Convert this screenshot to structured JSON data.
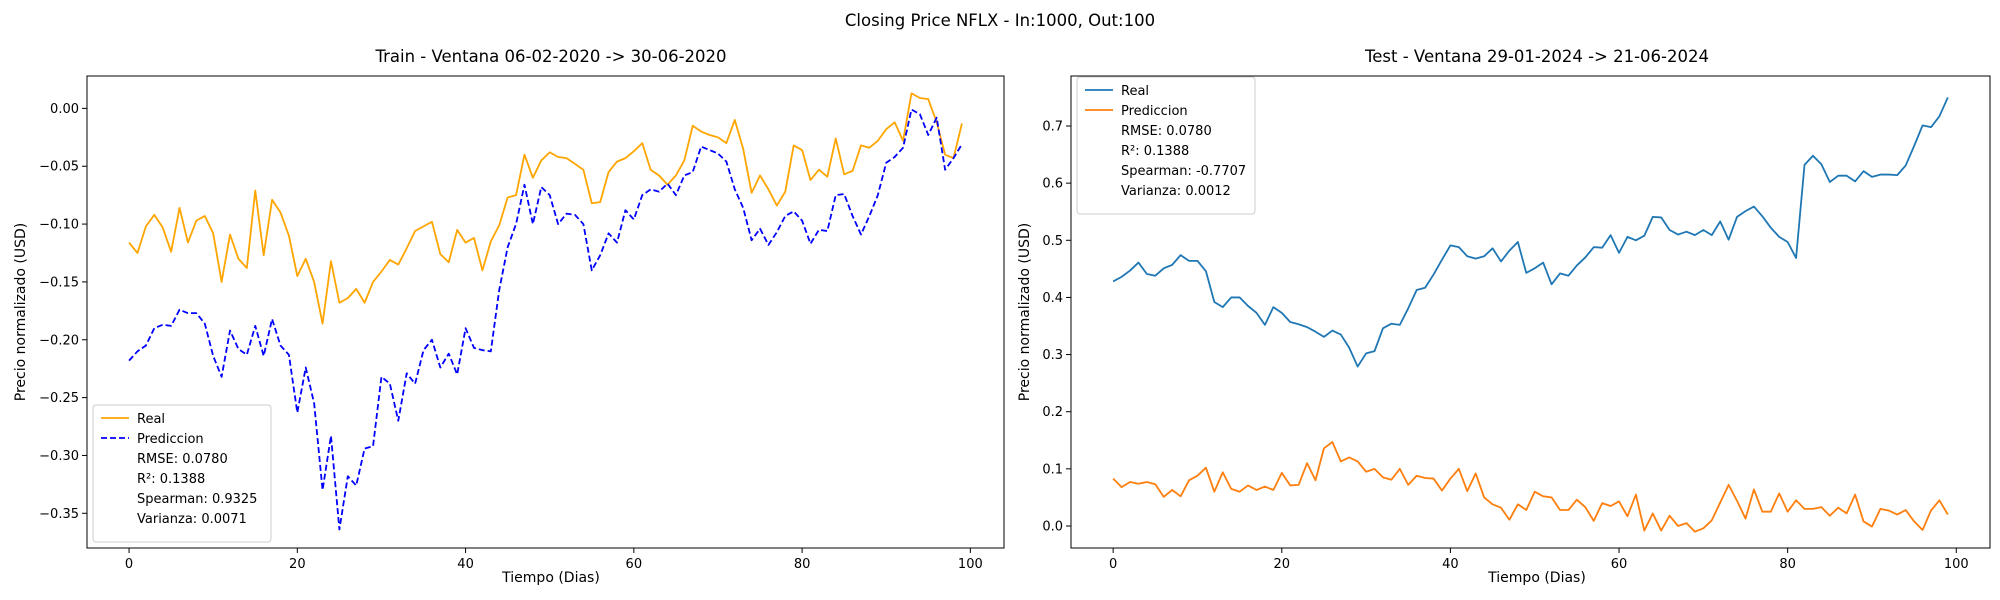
{
  "suptitle": "Closing Price NFLX - In:1000, Out:100",
  "chart_data": [
    {
      "type": "line",
      "title": "Train - Ventana 06-02-2020 -> 30-06-2020",
      "xlabel": "Tiempo (Dias)",
      "ylabel": "Precio normalizado (USD)",
      "xlim": [
        -5,
        104
      ],
      "ylim": [
        -0.38,
        0.028
      ],
      "xticks": [
        0,
        20,
        40,
        60,
        80,
        100
      ],
      "yticks": [
        -0.35,
        -0.3,
        -0.25,
        -0.2,
        -0.15,
        -0.1,
        -0.05,
        0.0
      ],
      "ytick_labels": [
        "−0.35",
        "−0.30",
        "−0.25",
        "−0.20",
        "−0.15",
        "−0.10",
        "−0.05",
        "0.00"
      ],
      "legend_position": "lower-left",
      "legend_entries": [
        "Real",
        "Prediccion"
      ],
      "legend_stats": [
        "RMSE: 0.0780",
        "R²: 0.1388",
        "Spearman: 0.9325",
        "Varianza: 0.0071"
      ],
      "series": [
        {
          "name": "Real",
          "color": "#ffa500",
          "dash": "solid",
          "values": [
            -0.116,
            -0.125,
            -0.102,
            -0.092,
            -0.103,
            -0.124,
            -0.086,
            -0.116,
            -0.097,
            -0.093,
            -0.108,
            -0.15,
            -0.109,
            -0.13,
            -0.138,
            -0.071,
            -0.127,
            -0.079,
            -0.09,
            -0.11,
            -0.145,
            -0.13,
            -0.15,
            -0.186,
            -0.132,
            -0.168,
            -0.164,
            -0.156,
            -0.168,
            -0.15,
            -0.141,
            -0.131,
            -0.135,
            -0.121,
            -0.106,
            -0.102,
            -0.098,
            -0.126,
            -0.133,
            -0.105,
            -0.116,
            -0.112,
            -0.14,
            -0.115,
            -0.101,
            -0.077,
            -0.075,
            -0.04,
            -0.06,
            -0.045,
            -0.038,
            -0.042,
            -0.043,
            -0.048,
            -0.053,
            -0.082,
            -0.081,
            -0.055,
            -0.046,
            -0.043,
            -0.037,
            -0.03,
            -0.053,
            -0.058,
            -0.066,
            -0.058,
            -0.045,
            -0.015,
            -0.02,
            -0.023,
            -0.025,
            -0.03,
            -0.01,
            -0.035,
            -0.073,
            -0.058,
            -0.07,
            -0.084,
            -0.072,
            -0.032,
            -0.036,
            -0.062,
            -0.053,
            -0.059,
            -0.026,
            -0.057,
            -0.054,
            -0.032,
            -0.034,
            -0.028,
            -0.018,
            -0.012,
            -0.028,
            0.013,
            0.009,
            0.008,
            -0.012,
            -0.04,
            -0.043,
            -0.013
          ]
        },
        {
          "name": "Prediccion",
          "color": "#0000ff",
          "dash": "dashed",
          "values": [
            -0.218,
            -0.21,
            -0.205,
            -0.19,
            -0.187,
            -0.188,
            -0.174,
            -0.177,
            -0.177,
            -0.186,
            -0.214,
            -0.232,
            -0.192,
            -0.208,
            -0.213,
            -0.188,
            -0.214,
            -0.182,
            -0.205,
            -0.213,
            -0.263,
            -0.224,
            -0.255,
            -0.33,
            -0.283,
            -0.364,
            -0.318,
            -0.326,
            -0.294,
            -0.292,
            -0.232,
            -0.238,
            -0.27,
            -0.229,
            -0.238,
            -0.209,
            -0.2,
            -0.224,
            -0.212,
            -0.23,
            -0.19,
            -0.207,
            -0.209,
            -0.21,
            -0.157,
            -0.12,
            -0.1,
            -0.066,
            -0.1,
            -0.068,
            -0.075,
            -0.1,
            -0.091,
            -0.092,
            -0.1,
            -0.14,
            -0.127,
            -0.108,
            -0.116,
            -0.088,
            -0.096,
            -0.075,
            -0.07,
            -0.072,
            -0.065,
            -0.075,
            -0.058,
            -0.055,
            -0.033,
            -0.036,
            -0.039,
            -0.046,
            -0.07,
            -0.086,
            -0.114,
            -0.104,
            -0.118,
            -0.107,
            -0.093,
            -0.089,
            -0.097,
            -0.117,
            -0.105,
            -0.106,
            -0.075,
            -0.074,
            -0.093,
            -0.109,
            -0.093,
            -0.075,
            -0.047,
            -0.042,
            -0.034,
            -0.001,
            -0.005,
            -0.023,
            -0.008,
            -0.053,
            -0.043,
            -0.031
          ]
        }
      ]
    },
    {
      "type": "line",
      "title": "Test - Ventana 29-01-2024 -> 21-06-2024",
      "xlabel": "Tiempo (Dias)",
      "ylabel": "Precio normalizado (USD)",
      "xlim": [
        -5,
        104
      ],
      "ylim": [
        -0.0385,
        0.7875
      ],
      "xticks": [
        0,
        20,
        40,
        60,
        80,
        100
      ],
      "yticks": [
        0.0,
        0.1,
        0.2,
        0.3,
        0.4,
        0.5,
        0.6,
        0.7
      ],
      "ytick_labels": [
        "0.0",
        "0.1",
        "0.2",
        "0.3",
        "0.4",
        "0.5",
        "0.6",
        "0.7"
      ],
      "legend_position": "upper-left",
      "legend_entries": [
        "Real",
        "Prediccion"
      ],
      "legend_stats": [
        "RMSE: 0.0780",
        "R²: 0.1388",
        "Spearman: -0.7707",
        "Varianza: 0.0012"
      ],
      "series": [
        {
          "name": "Real",
          "color": "#1f77b4",
          "dash": "solid",
          "values": [
            0.428,
            0.436,
            0.447,
            0.461,
            0.441,
            0.438,
            0.451,
            0.457,
            0.474,
            0.464,
            0.464,
            0.446,
            0.392,
            0.383,
            0.4,
            0.4,
            0.385,
            0.373,
            0.352,
            0.383,
            0.373,
            0.357,
            0.353,
            0.348,
            0.34,
            0.331,
            0.342,
            0.335,
            0.312,
            0.279,
            0.302,
            0.306,
            0.346,
            0.354,
            0.352,
            0.381,
            0.413,
            0.417,
            0.44,
            0.466,
            0.491,
            0.488,
            0.472,
            0.468,
            0.472,
            0.486,
            0.463,
            0.482,
            0.497,
            0.443,
            0.451,
            0.461,
            0.423,
            0.442,
            0.438,
            0.456,
            0.47,
            0.488,
            0.487,
            0.509,
            0.478,
            0.506,
            0.5,
            0.508,
            0.541,
            0.54,
            0.518,
            0.51,
            0.515,
            0.509,
            0.518,
            0.509,
            0.533,
            0.501,
            0.541,
            0.551,
            0.559,
            0.542,
            0.522,
            0.506,
            0.497,
            0.469,
            0.632,
            0.648,
            0.633,
            0.602,
            0.613,
            0.613,
            0.603,
            0.621,
            0.611,
            0.615,
            0.615,
            0.614,
            0.631,
            0.665,
            0.701,
            0.698,
            0.717,
            0.75
          ]
        },
        {
          "name": "Prediccion",
          "color": "#ff7f0e",
          "dash": "solid",
          "values": [
            0.083,
            0.068,
            0.077,
            0.074,
            0.077,
            0.073,
            0.051,
            0.063,
            0.052,
            0.08,
            0.088,
            0.102,
            0.06,
            0.094,
            0.065,
            0.06,
            0.071,
            0.063,
            0.069,
            0.063,
            0.093,
            0.071,
            0.072,
            0.11,
            0.08,
            0.136,
            0.147,
            0.113,
            0.12,
            0.113,
            0.095,
            0.1,
            0.085,
            0.081,
            0.1,
            0.072,
            0.088,
            0.084,
            0.083,
            0.062,
            0.083,
            0.1,
            0.061,
            0.092,
            0.05,
            0.038,
            0.032,
            0.011,
            0.038,
            0.028,
            0.06,
            0.052,
            0.05,
            0.028,
            0.028,
            0.046,
            0.033,
            0.009,
            0.04,
            0.035,
            0.043,
            0.017,
            0.055,
            -0.008,
            0.022,
            -0.008,
            0.018,
            0.0,
            0.005,
            -0.01,
            -0.004,
            0.01,
            0.041,
            0.072,
            0.044,
            0.013,
            0.064,
            0.025,
            0.025,
            0.057,
            0.025,
            0.045,
            0.03,
            0.03,
            0.033,
            0.018,
            0.032,
            0.022,
            0.055,
            0.008,
            -0.001,
            0.03,
            0.027,
            0.02,
            0.028,
            0.008,
            -0.007,
            0.027,
            0.045,
            0.02
          ]
        }
      ]
    }
  ]
}
